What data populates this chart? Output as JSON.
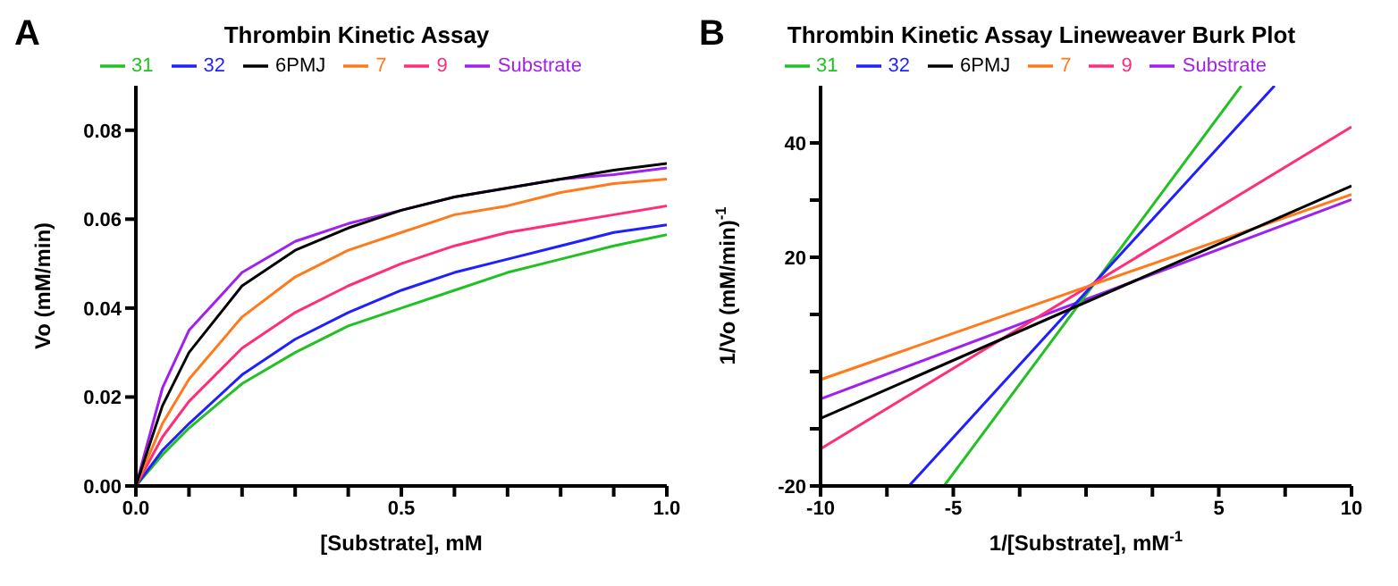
{
  "chart_data": [
    {
      "type": "line",
      "title": "Thrombin Kinetic Assay",
      "annotations": [
        "A"
      ],
      "xlabel": "[Substrate], mM",
      "ylabel": "Vo (mM/min)",
      "xlim": [
        0,
        1
      ],
      "ylim": [
        0,
        0.09
      ],
      "xticks": [
        {
          "value": 0,
          "label": "0.0"
        },
        {
          "value": 0.1,
          "label": null
        },
        {
          "value": 0.2,
          "label": null
        },
        {
          "value": 0.3,
          "label": null
        },
        {
          "value": 0.4,
          "label": null
        },
        {
          "value": 0.5,
          "label": "0.5"
        },
        {
          "value": 0.6,
          "label": null
        },
        {
          "value": 0.7,
          "label": null
        },
        {
          "value": 0.8,
          "label": null
        },
        {
          "value": 0.9,
          "label": null
        },
        {
          "value": 1,
          "label": "1.0"
        }
      ],
      "yticks": [
        {
          "value": 0,
          "label": "0.00"
        },
        {
          "value": 0.02,
          "label": "0.02"
        },
        {
          "value": 0.04,
          "label": "0.04"
        },
        {
          "value": 0.06,
          "label": "0.06"
        },
        {
          "value": 0.08,
          "label": "0.08"
        }
      ],
      "legend": "top",
      "grid": false,
      "marker": "none",
      "line_style": "solid",
      "x": [
        0,
        0.05,
        0.1,
        0.2,
        0.3,
        0.4,
        0.5,
        0.6,
        0.7,
        0.8,
        0.9,
        1.0
      ],
      "series": [
        {
          "name": "Substrate",
          "color": "#a020f0",
          "values": [
            0,
            0.022,
            0.035,
            0.048,
            0.055,
            0.059,
            0.062,
            0.065,
            0.067,
            0.069,
            0.07,
            0.0715
          ]
        },
        {
          "name": "31",
          "color": "#22c022",
          "values": [
            0,
            0.007,
            0.013,
            0.023,
            0.03,
            0.036,
            0.04,
            0.044,
            0.048,
            0.051,
            0.054,
            0.0565
          ]
        },
        {
          "name": "32",
          "color": "#1f1fff",
          "values": [
            0,
            0.008,
            0.014,
            0.025,
            0.033,
            0.039,
            0.044,
            0.048,
            0.051,
            0.054,
            0.057,
            0.0587
          ]
        },
        {
          "name": "9",
          "color": "#ff2d7a",
          "values": [
            0,
            0.011,
            0.019,
            0.031,
            0.039,
            0.045,
            0.05,
            0.054,
            0.057,
            0.059,
            0.061,
            0.063
          ]
        },
        {
          "name": "7",
          "color": "#ff7a1a",
          "values": [
            0,
            0.014,
            0.024,
            0.038,
            0.047,
            0.053,
            0.057,
            0.061,
            0.063,
            0.066,
            0.068,
            0.069
          ]
        },
        {
          "name": "6PMJ",
          "color": "#000000",
          "values": [
            0,
            0.018,
            0.03,
            0.045,
            0.053,
            0.058,
            0.062,
            0.065,
            0.067,
            0.069,
            0.071,
            0.0725
          ]
        }
      ]
    },
    {
      "type": "line",
      "title": "Thrombin Kinetic Assay Lineweaver Burk Plot",
      "annotations": [
        "B"
      ],
      "xlabel": "1/[Substrate], mM$^{-1}$",
      "ylabel": "1/Vo (mM/min)$^{-1}$",
      "xlim": [
        -10,
        10
      ],
      "ylim": [
        -20,
        50
      ],
      "xticks": [
        -10,
        {
          "value": -7.5,
          "label": null
        },
        -5,
        {
          "value": -2.5,
          "label": null
        },
        {
          "value": 0,
          "label": null
        },
        {
          "value": 2.5,
          "label": null
        },
        5,
        {
          "value": 7.5,
          "label": null
        },
        10
      ],
      "yticks": [
        -20,
        {
          "value": -10,
          "label": null
        },
        {
          "value": 0,
          "label": null
        },
        {
          "value": 10,
          "label": null
        },
        20,
        {
          "value": 30,
          "label": null
        },
        40
      ],
      "legend": "top",
      "grid": false,
      "marker": "none",
      "line_style": "solid",
      "series": [
        {
          "name": "Substrate",
          "color": "#a020f0",
          "x": [
            -10,
            10
          ],
          "values": [
            -4.8,
            30.1
          ]
        },
        {
          "name": "31",
          "color": "#22c022",
          "x": [
            -5.35,
            5.85
          ],
          "values": [
            -20,
            50
          ]
        },
        {
          "name": "32",
          "color": "#1f1fff",
          "x": [
            -6.67,
            7.1
          ],
          "values": [
            -20,
            50
          ]
        },
        {
          "name": "9",
          "color": "#ff2d7a",
          "x": [
            -10,
            10
          ],
          "values": [
            -13.5,
            42.8
          ]
        },
        {
          "name": "7",
          "color": "#ff7a1a",
          "x": [
            -10,
            10
          ],
          "values": [
            -1.4,
            31.0
          ]
        },
        {
          "name": "6PMJ",
          "color": "#000000",
          "x": [
            -10,
            10
          ],
          "values": [
            -8.2,
            32.5
          ]
        }
      ]
    }
  ]
}
